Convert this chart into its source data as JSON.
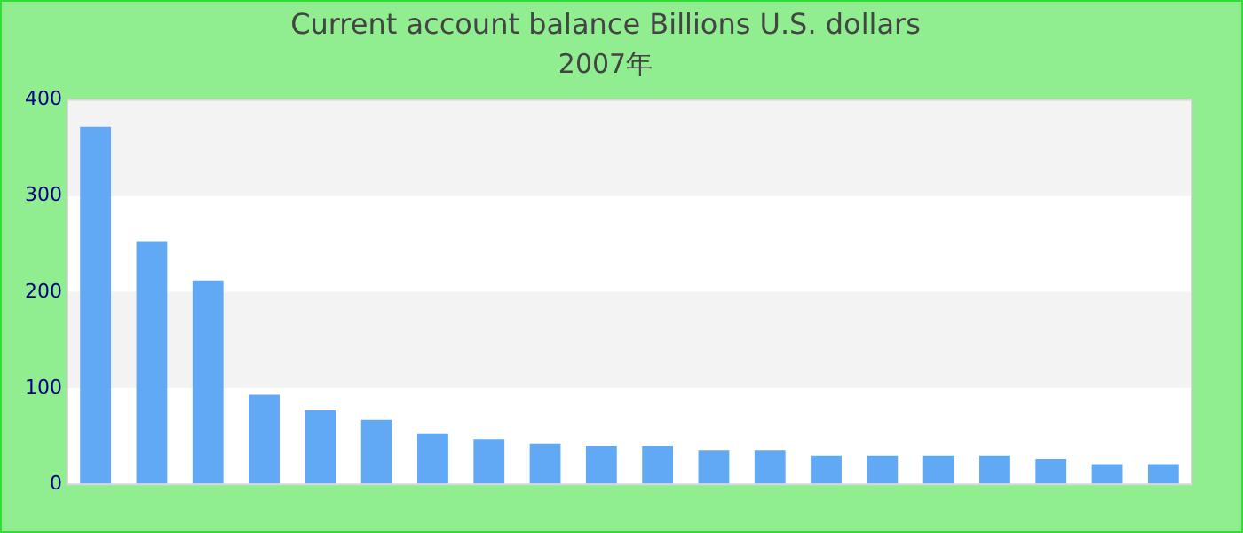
{
  "chart_data": {
    "type": "bar",
    "title": "Current account balance Billions U.S. dollars",
    "subtitle": "2007年",
    "categories": [
      null,
      null,
      null,
      null,
      null,
      null,
      null,
      null,
      null,
      null,
      null,
      null,
      null,
      null,
      null,
      null,
      null,
      null,
      null,
      null
    ],
    "values": [
      372,
      253,
      212,
      93,
      77,
      67,
      53,
      47,
      42,
      40,
      40,
      35,
      35,
      30,
      30,
      30,
      30,
      26,
      21,
      21
    ],
    "color": "#62a9f5",
    "ylim": [
      0,
      400
    ],
    "yticks": [
      0,
      100,
      200,
      300,
      400
    ],
    "grid": "y",
    "legend": false
  }
}
